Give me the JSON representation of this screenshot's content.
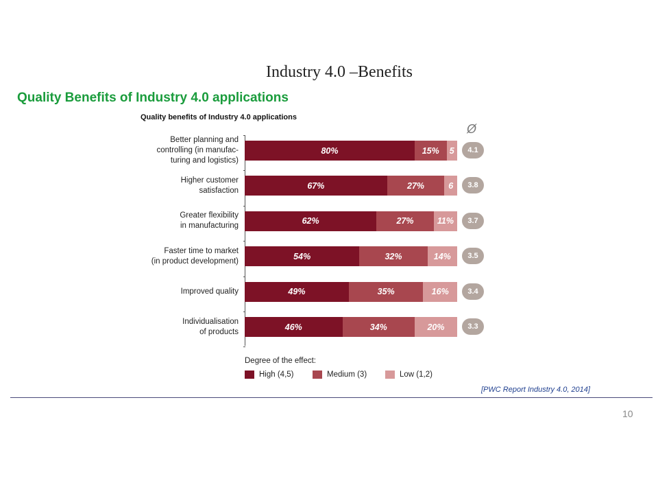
{
  "slide": {
    "title": "Industry 4.0 –Benefits",
    "subtitle": "Quality Benefits of Industry 4.0 applications",
    "source": "[PWC Report Industry 4.0, 2014]",
    "page_number": "10"
  },
  "chart_data": {
    "type": "bar",
    "orientation": "horizontal",
    "stacked": true,
    "title": "Quality benefits of Industry 4.0 applications",
    "average_column_label": "Ø",
    "categories": [
      [
        "Better planning and",
        "controlling (in manufac-",
        "turing and logistics)"
      ],
      [
        "Higher customer",
        "satisfaction"
      ],
      [
        "Greater flexibility",
        "in manufacturing"
      ],
      [
        "Faster time to market",
        "(in product development)"
      ],
      [
        "Improved quality"
      ],
      [
        "Individualisation",
        "of products"
      ]
    ],
    "series": [
      {
        "name": "High (4,5)",
        "color": "#7d1226",
        "values": [
          80,
          67,
          62,
          54,
          49,
          46
        ]
      },
      {
        "name": "Medium (3)",
        "color": "#a8474f",
        "values": [
          15,
          27,
          27,
          32,
          35,
          34
        ]
      },
      {
        "name": "Low (1,2)",
        "color": "#d7999a",
        "values": [
          5,
          6,
          11,
          14,
          16,
          20
        ]
      }
    ],
    "data_labels": [
      [
        "80%",
        "15%",
        "5"
      ],
      [
        "67%",
        "27%",
        "6"
      ],
      [
        "62%",
        "27%",
        "11%"
      ],
      [
        "54%",
        "32%",
        "14%"
      ],
      [
        "49%",
        "35%",
        "16%"
      ],
      [
        "46%",
        "34%",
        "20%"
      ]
    ],
    "averages": [
      "4.1",
      "3.8",
      "3.7",
      "3.5",
      "3.4",
      "3.3"
    ],
    "legend_title": "Degree of the effect:",
    "legend": [
      {
        "label": "High (4,5)",
        "color": "#7d1226"
      },
      {
        "label": "Medium (3)",
        "color": "#a8474f"
      },
      {
        "label": "Low (1,2)",
        "color": "#d7999a"
      }
    ]
  }
}
